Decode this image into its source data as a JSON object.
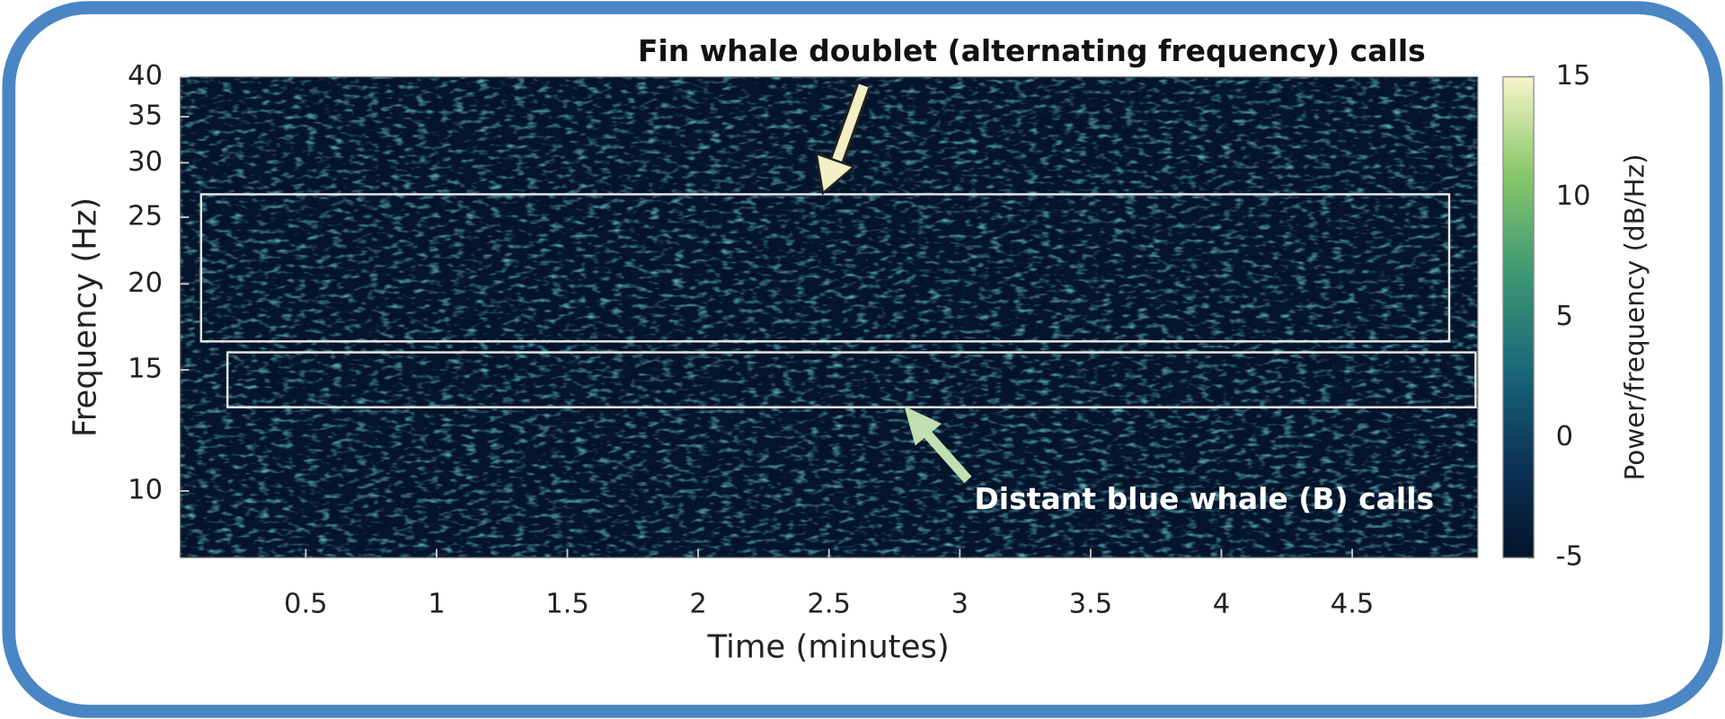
{
  "chart_data": {
    "type": "spectrogram",
    "xlabel": "Time (minutes)",
    "ylabel": "Frequency (Hz)",
    "colorbar_label": "Power/frequency (dB/Hz)",
    "xlim": [
      0.02,
      4.98
    ],
    "xticks": [
      0.5,
      1,
      1.5,
      2,
      2.5,
      3,
      3.5,
      4,
      4.5
    ],
    "ylim": [
      8,
      40
    ],
    "yticks": [
      10,
      15,
      20,
      25,
      30,
      35,
      40
    ],
    "ylog": true,
    "clim": [
      -5,
      15
    ],
    "cticks": [
      -5,
      0,
      5,
      10,
      15
    ],
    "colormap": [
      "#04142b",
      "#0b3457",
      "#1a6a7a",
      "#3f9a72",
      "#8ac86a",
      "#f6f4c9"
    ],
    "annotations": [
      "Fin whale doublet (alternating frequency) calls",
      "Distant blue whale (B) calls"
    ]
  }
}
